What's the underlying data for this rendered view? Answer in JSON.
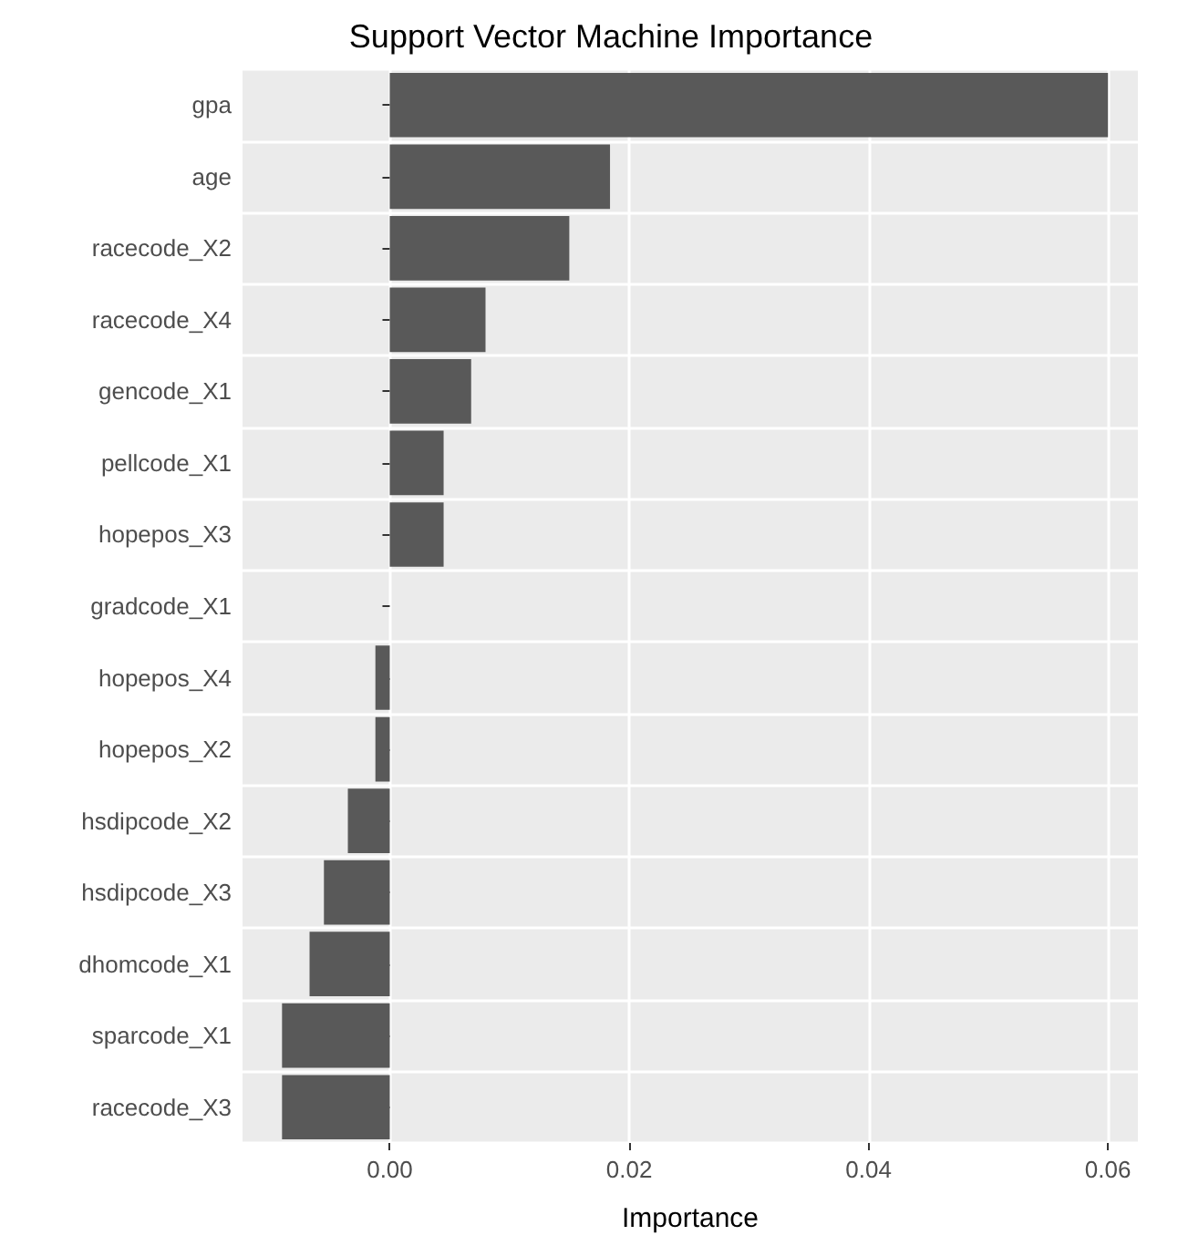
{
  "chart_data": {
    "type": "bar",
    "orientation": "horizontal",
    "title": "Support Vector Machine Importance",
    "xlabel": "Importance",
    "categories": [
      "gpa",
      "age",
      "racecode_X2",
      "racecode_X4",
      "gencode_X1",
      "pellcode_X1",
      "hopepos_X3",
      "gradcode_X1",
      "hopepos_X4",
      "hopepos_X2",
      "hsdipcode_X2",
      "hsdipcode_X3",
      "dhomcode_X1",
      "sparcode_X1",
      "racecode_X3"
    ],
    "values": [
      0.06,
      0.0184,
      0.015,
      0.008,
      0.0068,
      0.0045,
      0.0045,
      0,
      -0.0012,
      -0.0012,
      -0.0035,
      -0.0055,
      -0.0067,
      -0.009,
      -0.009
    ],
    "color": "#595959",
    "xlim": [
      -0.0123,
      0.0625
    ],
    "xticks": [
      {
        "value": 0,
        "label": "0.00"
      },
      {
        "value": 0.02,
        "label": "0.02"
      },
      {
        "value": 0.04,
        "label": "0.04"
      },
      {
        "value": 0.06,
        "label": "0.06"
      }
    ],
    "grid": true
  }
}
